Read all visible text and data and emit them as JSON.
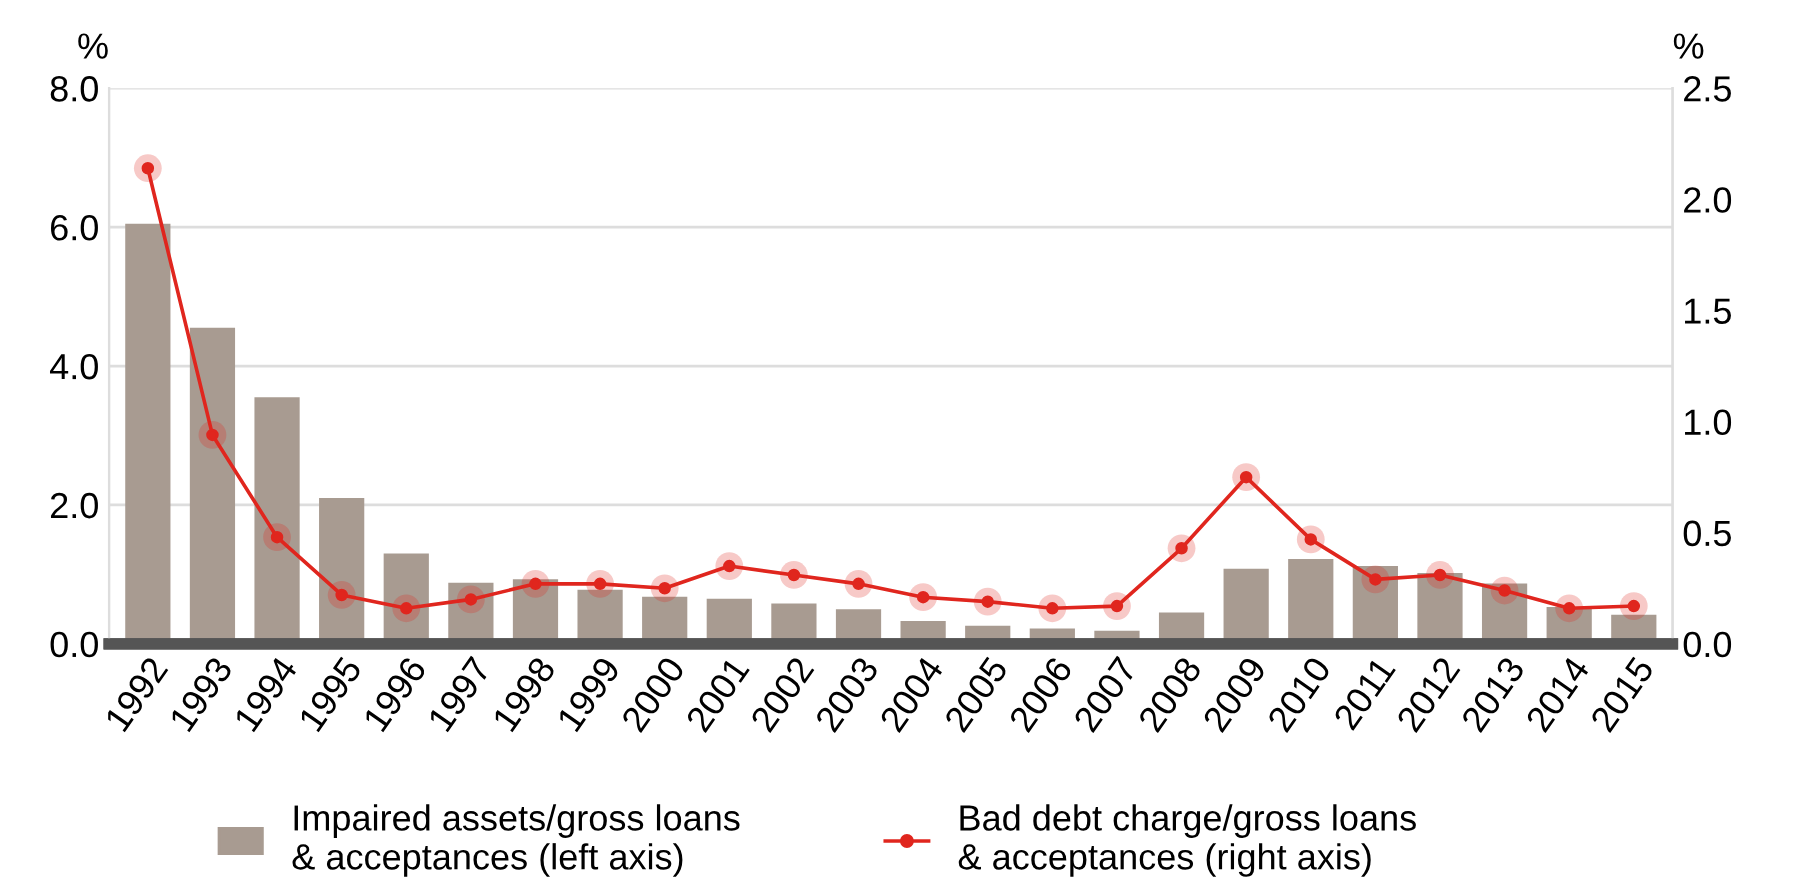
{
  "chart_data": {
    "type": "bar",
    "ylabel": "%",
    "y2label": "%",
    "categories": [
      "1992",
      "1993",
      "1994",
      "1995",
      "1996",
      "1997",
      "1998",
      "1999",
      "2000",
      "2001",
      "2002",
      "2003",
      "2004",
      "2005",
      "2006",
      "2007",
      "2008",
      "2009",
      "2010",
      "2011",
      "2012",
      "2013",
      "2014",
      "2015"
    ],
    "series": [
      {
        "name": "Impaired assets/gross loans\n& acceptances (left axis)",
        "color": "#a89b91",
        "values": [
          6.05,
          4.55,
          3.55,
          2.1,
          1.3,
          0.88,
          0.93,
          0.78,
          0.68,
          0.65,
          0.58,
          0.5,
          0.33,
          0.26,
          0.22,
          0.19,
          0.45,
          1.08,
          1.22,
          1.12,
          1.02,
          0.87,
          0.53,
          0.42
        ]
      },
      {
        "name": "Bad debt charge/gross loans\n& acceptances (right axis)",
        "type": "line",
        "axis": "y2",
        "color": "#e0261e",
        "marker": "circle",
        "values": [
          2.14,
          0.94,
          0.48,
          0.22,
          0.16,
          0.2,
          0.27,
          0.27,
          0.25,
          0.35,
          0.31,
          0.27,
          0.21,
          0.19,
          0.16,
          0.17,
          0.43,
          0.75,
          0.47,
          0.29,
          0.31,
          0.24,
          0.16,
          0.17
        ]
      }
    ],
    "ylim": [
      0,
      8
    ],
    "yticks": [
      {
        "value": 0,
        "label": "0.0"
      },
      {
        "value": 2,
        "label": "2.0"
      },
      {
        "value": 4,
        "label": "4.0"
      },
      {
        "value": 6,
        "label": "6.0"
      },
      {
        "value": 8,
        "label": "8.0"
      }
    ],
    "y2lim": [
      0,
      2.5
    ],
    "y2ticks": [
      {
        "value": 0,
        "label": "0.0"
      },
      {
        "value": 0.5,
        "label": "0.5"
      },
      {
        "value": 1,
        "label": "1.0"
      },
      {
        "value": 1.5,
        "label": "1.5"
      },
      {
        "value": 2,
        "label": "2.0"
      },
      {
        "value": 2.5,
        "label": "2.5"
      }
    ],
    "grid": "y",
    "legend": "bottom"
  }
}
